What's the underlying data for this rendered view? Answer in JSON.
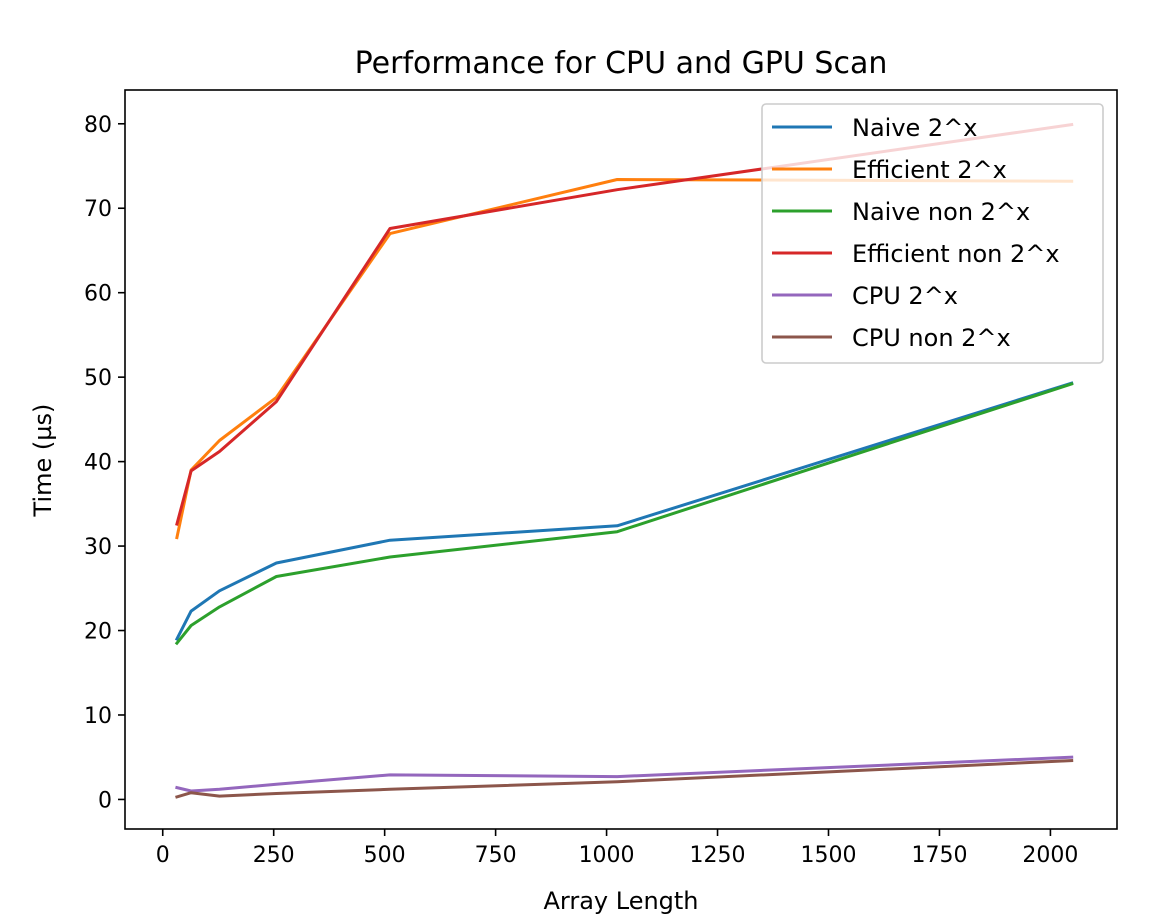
{
  "chart_data": {
    "type": "line",
    "title": "Performance for CPU and GPU Scan",
    "xlabel": "Array Length",
    "ylabel": "Time (µs)",
    "xlim": [
      -85,
      2150
    ],
    "ylim": [
      -3.5,
      84
    ],
    "xticks": [
      0,
      250,
      500,
      750,
      1000,
      1250,
      1500,
      1750,
      2000
    ],
    "yticks": [
      0,
      10,
      20,
      30,
      40,
      50,
      60,
      70,
      80
    ],
    "grid": false,
    "legend_position": "top-right",
    "x": [
      32,
      64,
      128,
      256,
      512,
      1024,
      2048
    ],
    "series": [
      {
        "name": "Naive 2^x",
        "color": "#1f77b4",
        "values": [
          19.0,
          22.3,
          24.7,
          28.0,
          30.7,
          32.4,
          49.3
        ]
      },
      {
        "name": "Efficient 2^x",
        "color": "#ff7f0e",
        "values": [
          31.0,
          39.0,
          42.5,
          47.6,
          67.0,
          73.4,
          73.2
        ]
      },
      {
        "name": "Naive non 2^x",
        "color": "#2ca02c",
        "values": [
          18.5,
          20.6,
          22.8,
          26.4,
          28.7,
          31.7,
          49.2
        ]
      },
      {
        "name": "Efficient non 2^x",
        "color": "#d62728",
        "values": [
          32.6,
          38.9,
          41.2,
          47.1,
          67.6,
          72.2,
          79.9
        ]
      },
      {
        "name": "CPU 2^x",
        "color": "#9467bd",
        "values": [
          1.4,
          1.0,
          1.2,
          1.8,
          2.9,
          2.7,
          5.0
        ]
      },
      {
        "name": "CPU non 2^x",
        "color": "#8c564b",
        "values": [
          0.3,
          0.8,
          0.4,
          0.7,
          1.2,
          2.1,
          4.6
        ]
      }
    ]
  }
}
